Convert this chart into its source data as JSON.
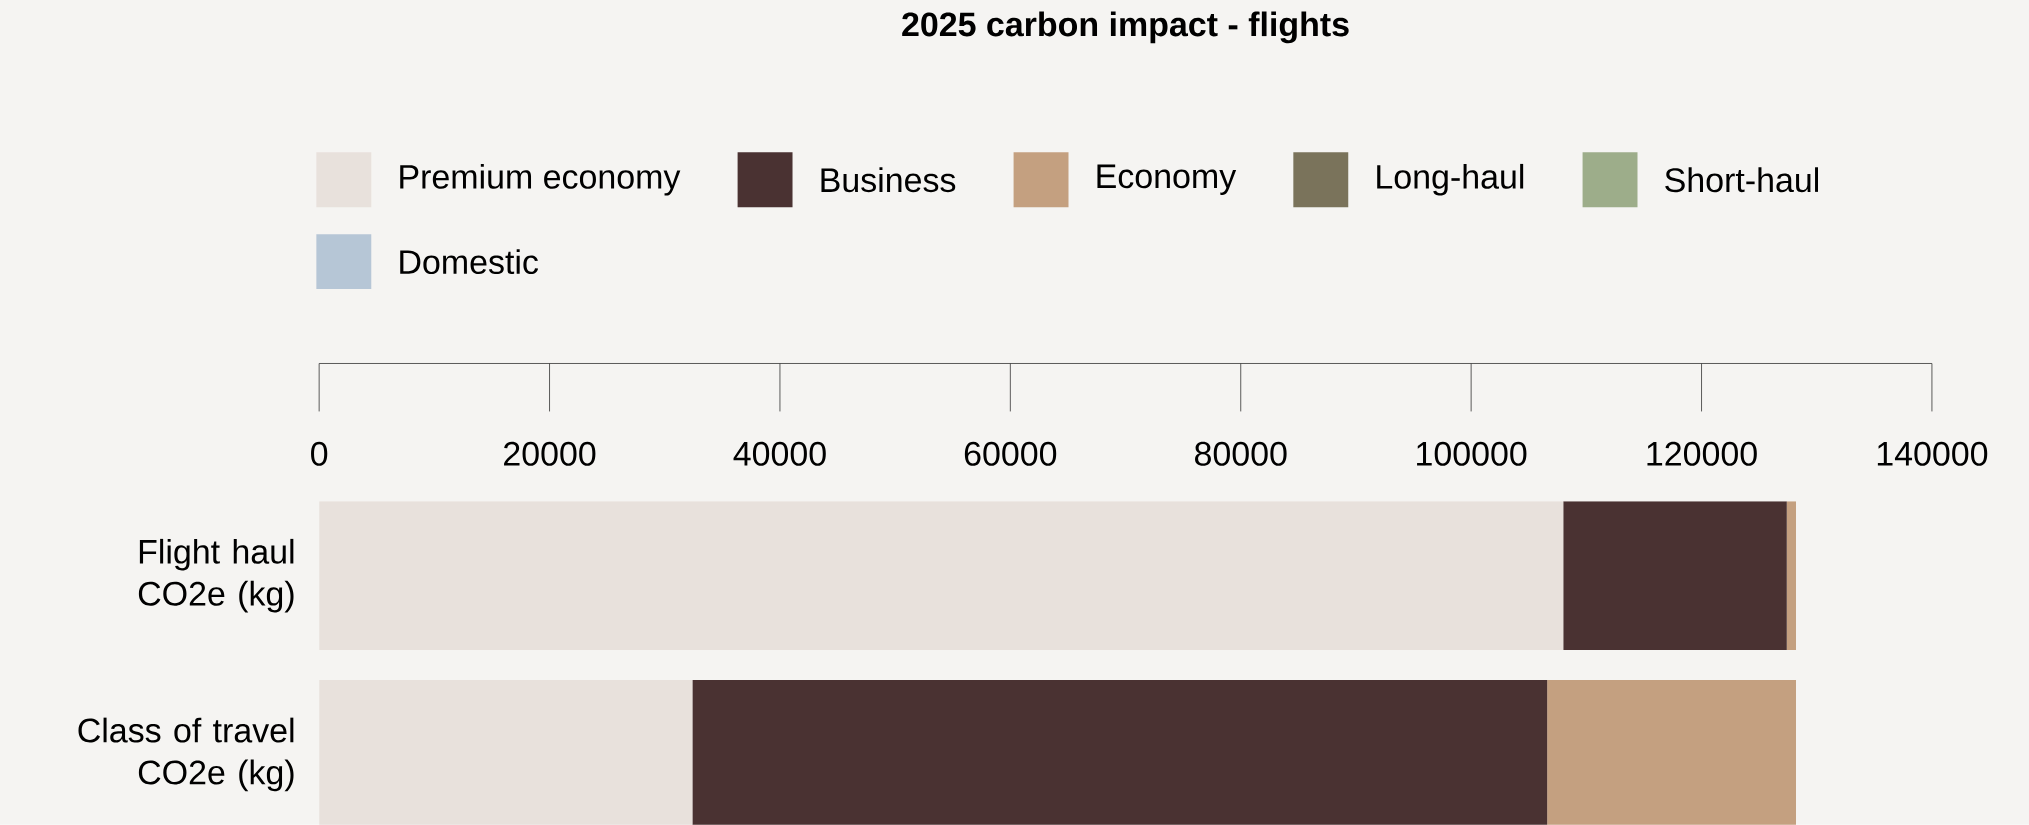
{
  "chart_data": {
    "type": "bar",
    "orientation": "horizontal",
    "stacked": true,
    "title": "2025 carbon impact - flights",
    "categories": [
      "Flight haul CO2e (kg)",
      "Class of travel CO2e (kg)"
    ],
    "series": [
      {
        "name": "Premium economy",
        "color": "#e8e1dc",
        "values": [
          108000,
          32400
        ]
      },
      {
        "name": "Business",
        "color": "#4a3232",
        "values": [
          19400,
          74200
        ]
      },
      {
        "name": "Economy",
        "color": "#c4a080",
        "values": [
          800,
          21600
        ]
      },
      {
        "name": "Long-haul",
        "color": "#7a735b",
        "values": [
          null,
          null
        ]
      },
      {
        "name": "Short-haul",
        "color": "#9dad8a",
        "values": [
          null,
          null
        ]
      },
      {
        "name": "Domestic",
        "color": "#b6c6d6",
        "values": [
          null,
          null
        ]
      }
    ],
    "xlim": [
      0,
      140000
    ],
    "xticks": [
      0,
      20000,
      40000,
      60000,
      80000,
      100000,
      120000,
      140000
    ],
    "legend": "top",
    "grid": false
  }
}
